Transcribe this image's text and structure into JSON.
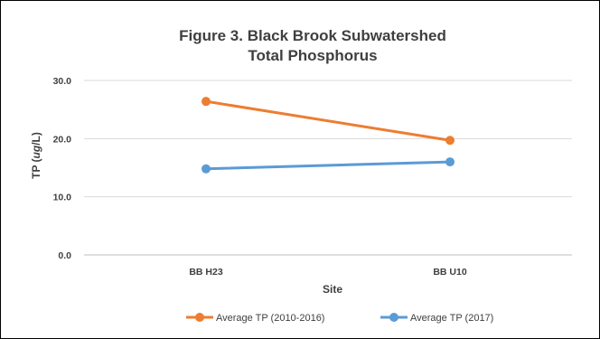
{
  "chart_data": {
    "type": "line",
    "title": [
      "Figure 3. Black Brook Subwatershed",
      "Total Phosphorus"
    ],
    "xlabel": "Site",
    "ylabel_parts": [
      "TP (",
      "ug",
      "/L)"
    ],
    "categories": [
      "BB H23",
      "BB U10"
    ],
    "ylim": [
      0,
      30
    ],
    "yticks": [
      "0.0",
      "10.0",
      "20.0",
      "30.0"
    ],
    "grid": true,
    "legend": "bottom",
    "series": [
      {
        "name": "Average TP (2010-2016)",
        "values": [
          26.4,
          19.7
        ],
        "color": "#ed7d31"
      },
      {
        "name": "Average TP (2017)",
        "values": [
          14.8,
          16.0
        ],
        "color": "#5b9bd5"
      }
    ]
  }
}
